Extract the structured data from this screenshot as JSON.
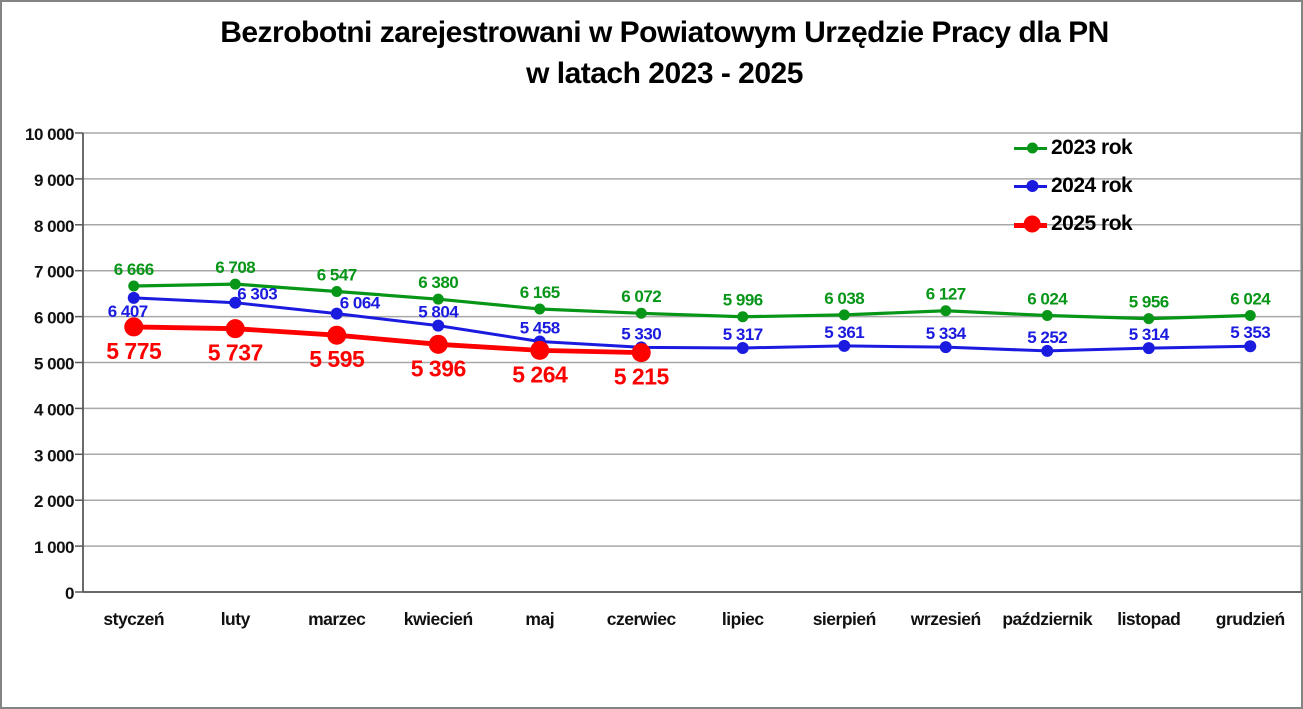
{
  "title": {
    "line1": "Bezrobotni zarejestrowani w Powiatowym Urzędzie Pracy dla PN",
    "line2": "w latach 2023 - 2025"
  },
  "chart_data": {
    "type": "line",
    "categories": [
      "styczeń",
      "luty",
      "marzec",
      "kwiecień",
      "maj",
      "czerwiec",
      "lipiec",
      "sierpień",
      "wrzesień",
      "październik",
      "listopad",
      "grudzień"
    ],
    "series": [
      {
        "name": "2023 rok",
        "color": "#089618",
        "values": [
          6666,
          6708,
          6547,
          6380,
          6165,
          6072,
          5996,
          6038,
          6127,
          6024,
          5956,
          6024
        ]
      },
      {
        "name": "2024 rok",
        "color": "#1b1be0",
        "values": [
          6407,
          6303,
          6064,
          5804,
          5458,
          5330,
          5317,
          5361,
          5334,
          5252,
          5314,
          5353
        ]
      },
      {
        "name": "2025 rok",
        "color": "#fd0000",
        "values": [
          5775,
          5737,
          5595,
          5396,
          5264,
          5215
        ]
      }
    ],
    "ylim": [
      0,
      10000
    ],
    "y_tick_step": 1000,
    "y_tick_labels": [
      "0",
      "1 000",
      "2 000",
      "3 000",
      "4 000",
      "5 000",
      "6 000",
      "7 000",
      "8 000",
      "9 000",
      "10 000"
    ],
    "grid": true,
    "data_labels": true,
    "number_format": "space-thousands",
    "legend_position": "top-right"
  },
  "colors": {
    "grid": "#a8a8a8",
    "axis": "#595959",
    "frame_border": "#848484",
    "tick_text": "#111111",
    "title_text": "#000000"
  }
}
